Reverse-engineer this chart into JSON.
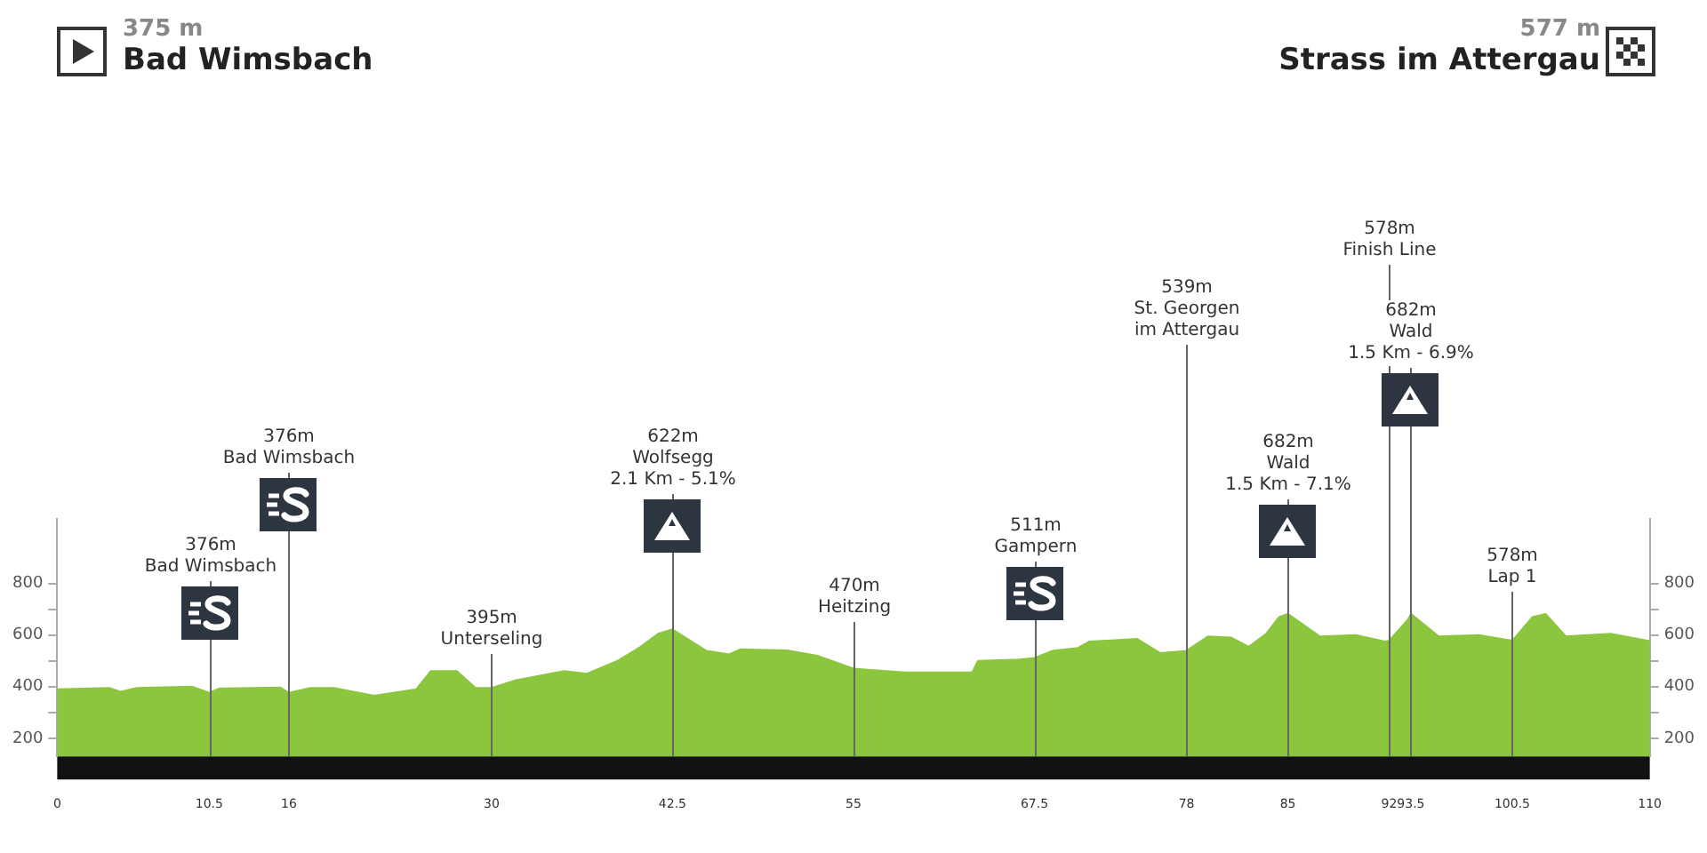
{
  "chart_data": {
    "type": "area",
    "annotations": [
      "375 m",
      "Bad Wimsbach",
      "577 m",
      "Strass im Attergau"
    ],
    "series": [
      {
        "color": "#8cc63f",
        "x": [
          0,
          3.6,
          4.4,
          5.5,
          9.3,
          10.5,
          11.2,
          15.4,
          16,
          17.5,
          19.1,
          21.9,
          24.8,
          25.8,
          27.6,
          28.9,
          30,
          31.7,
          35,
          36.6,
          38.7,
          40.3,
          41.5,
          42.5,
          44.8,
          46.4,
          47.2,
          50.5,
          52.5,
          55,
          56.2,
          58.7,
          63.2,
          63.6,
          66.4,
          67.5,
          68.8,
          70.5,
          71.3,
          74.6,
          76.2,
          78,
          79.5,
          81.1,
          82.3,
          83.5,
          84.4,
          85,
          87.2,
          89.7,
          91.7,
          92,
          93.3,
          93.5,
          95.4,
          98.2,
          100.3,
          100.5,
          101.9,
          102.8,
          104.2,
          107.3,
          110
        ],
        "values": [
          390,
          395,
          380,
          395,
          400,
          376,
          393,
          397,
          376,
          395,
          395,
          365,
          390,
          460,
          460,
          395,
          395,
          425,
          460,
          450,
          500,
          555,
          605,
          622,
          540,
          525,
          545,
          540,
          520,
          470,
          465,
          455,
          455,
          500,
          505,
          511,
          540,
          550,
          575,
          585,
          530,
          539,
          595,
          590,
          555,
          605,
          670,
          682,
          595,
          600,
          575,
          578,
          660,
          682,
          595,
          600,
          580,
          578,
          670,
          682,
          595,
          605,
          577
        ]
      }
    ],
    "xlim": [
      0,
      110
    ],
    "xticks": [
      0,
      10.5,
      16,
      30,
      42.5,
      55,
      67.5,
      78,
      85,
      92,
      93.5,
      100.5,
      110
    ],
    "ylim": [
      130,
      1050
    ],
    "yticks": [
      200,
      {
        "value": 300,
        "label": null
      },
      400,
      {
        "value": 500,
        "label": null
      },
      600,
      {
        "value": 700,
        "label": null
      },
      800
    ],
    "y2lim": [
      130,
      1050
    ],
    "y2ticks": [
      200,
      {
        "value": 300,
        "label": null
      },
      400,
      {
        "value": 500,
        "label": null
      },
      600,
      {
        "value": 700,
        "label": null
      },
      800
    ],
    "marker": "none",
    "ref_lines": [
      {
        "axis": "x",
        "value": 10.5,
        "label": "376m\nBad Wimsbach"
      },
      {
        "axis": "x",
        "value": 16,
        "label": "376m\nBad Wimsbach"
      },
      {
        "axis": "x",
        "value": 30,
        "label": "395m\nUnterseling"
      },
      {
        "axis": "x",
        "value": 42.5,
        "label": "622m\nWolfsegg\n2.1 Km - 5.1%"
      },
      {
        "axis": "x",
        "value": 55,
        "label": "470m\nHeitzing"
      },
      {
        "axis": "x",
        "value": 67.5,
        "label": "511m\nGampern"
      },
      {
        "axis": "x",
        "value": 78,
        "label": "539m\nSt. Georgen\nim Attergau"
      },
      {
        "axis": "x",
        "value": 85,
        "label": "682m\nWald\n1.5 Km - 7.1%"
      },
      {
        "axis": "x",
        "value": 92,
        "label": "578m\nFinish Line"
      },
      {
        "axis": "x",
        "value": 93.5,
        "label": "682m\nWald\n1.5 Km - 6.9%"
      },
      {
        "axis": "x",
        "value": 100.5,
        "label": "578m\nLap 1"
      }
    ]
  }
}
